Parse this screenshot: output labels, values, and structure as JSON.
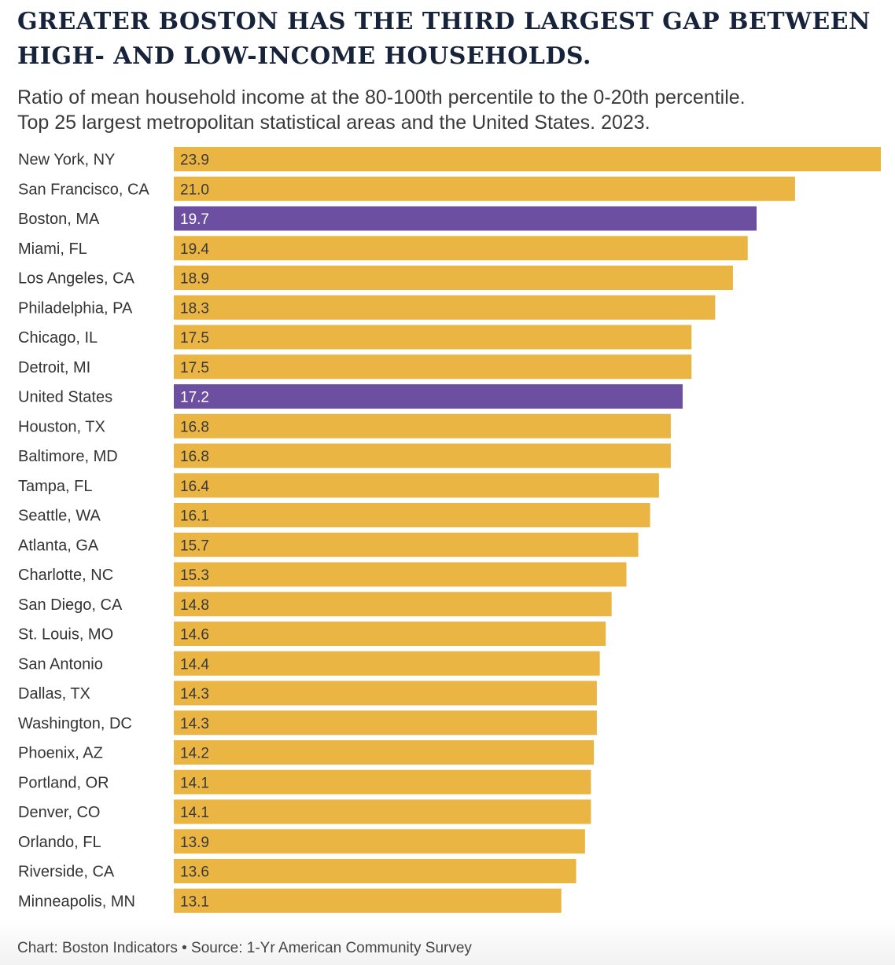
{
  "title_lines": [
    "GREATER BOSTON HAS THE THIRD LARGEST GAP BETWEEN",
    "HIGH- AND LOW-INCOME HOUSEHOLDS."
  ],
  "subtitle_lines": [
    "Ratio of mean household income at the 80-100th percentile to the 0-20th percentile.",
    "Top 25 largest metropolitan statistical areas and the United States. 2023."
  ],
  "footer": "Chart: Boston Indicators • Source: 1-Yr American Community Survey",
  "colors": {
    "default_bar": "#eab543",
    "highlight_bar": "#6c4fa0",
    "label": "#333333",
    "value_dark": "#3a3a3a",
    "value_light": "#ffffff"
  },
  "chart_data": {
    "type": "bar",
    "orientation": "horizontal",
    "title": "GREATER BOSTON HAS THE THIRD LARGEST GAP BETWEEN HIGH- AND LOW-INCOME HOUSEHOLDS.",
    "xlabel": "",
    "ylabel": "",
    "xlim": [
      0,
      23.9
    ],
    "grid": false,
    "categories": [
      "New York, NY",
      "San Francisco, CA",
      "Boston, MA",
      "Miami, FL",
      "Los Angeles, CA",
      "Philadelphia, PA",
      "Chicago, IL",
      "Detroit, MI",
      "United States",
      "Houston, TX",
      "Baltimore, MD",
      "Tampa, FL",
      "Seattle, WA",
      "Atlanta, GA",
      "Charlotte, NC",
      "San Diego, CA",
      "St. Louis, MO",
      "San Antonio",
      "Dallas, TX",
      "Washington, DC",
      "Phoenix, AZ",
      "Portland, OR",
      "Denver, CO",
      "Orlando, FL",
      "Riverside, CA",
      "Minneapolis, MN"
    ],
    "values": [
      23.9,
      21.0,
      19.7,
      19.4,
      18.9,
      18.3,
      17.5,
      17.5,
      17.2,
      16.8,
      16.8,
      16.4,
      16.1,
      15.7,
      15.3,
      14.8,
      14.6,
      14.4,
      14.3,
      14.3,
      14.2,
      14.1,
      14.1,
      13.9,
      13.6,
      13.1
    ],
    "value_labels": [
      "23.9",
      "21.0",
      "19.7",
      "19.4",
      "18.9",
      "18.3",
      "17.5",
      "17.5",
      "17.2",
      "16.8",
      "16.8",
      "16.4",
      "16.1",
      "15.7",
      "15.3",
      "14.8",
      "14.6",
      "14.4",
      "14.3",
      "14.3",
      "14.2",
      "14.1",
      "14.1",
      "13.9",
      "13.6",
      "13.1"
    ],
    "highlighted": [
      "Boston, MA",
      "United States"
    ]
  }
}
